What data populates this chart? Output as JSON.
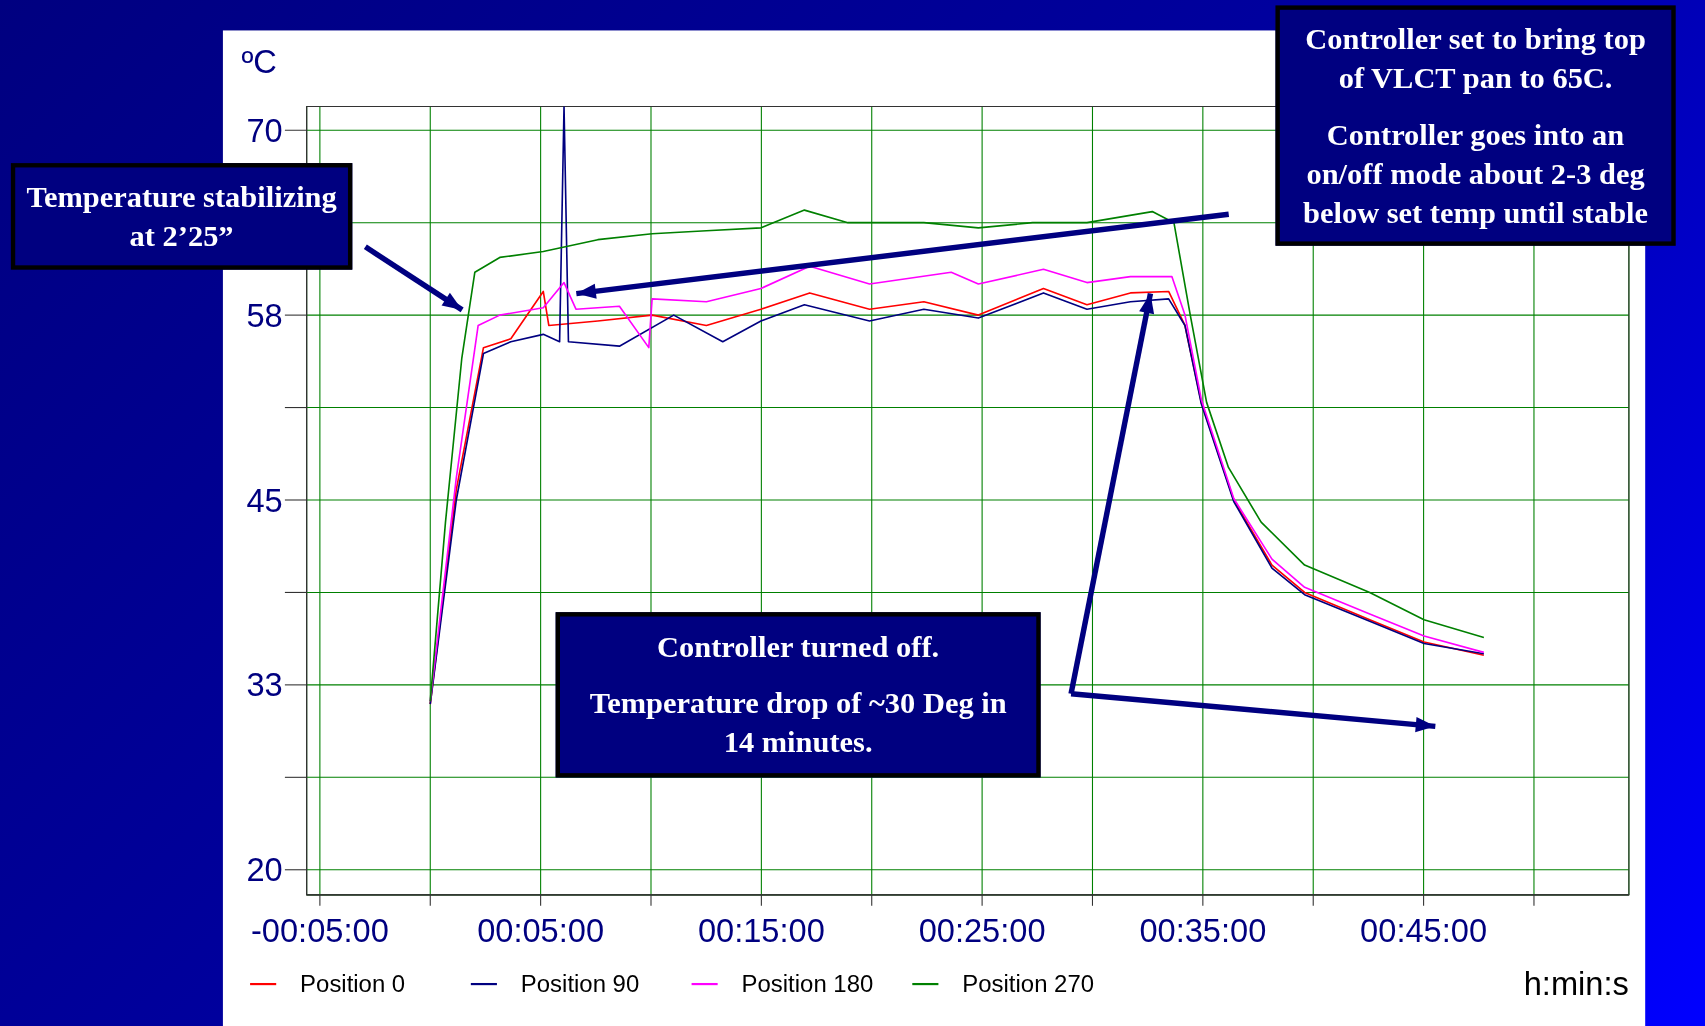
{
  "chart_data": {
    "type": "line",
    "ylabel": "ºC",
    "xlabel": "h:min:s",
    "xlim": [
      -5.6,
      54.3
    ],
    "xticks": [
      {
        "value": -5,
        "label": "-00:05:00"
      },
      {
        "value": 0,
        "label": null
      },
      {
        "value": 5,
        "label": "00:05:00"
      },
      {
        "value": 10,
        "label": null
      },
      {
        "value": 15,
        "label": "00:15:00"
      },
      {
        "value": 20,
        "label": null
      },
      {
        "value": 25,
        "label": "00:25:00"
      },
      {
        "value": 30,
        "label": null
      },
      {
        "value": 35,
        "label": "00:35:00"
      },
      {
        "value": 40,
        "label": null
      },
      {
        "value": 45,
        "label": "00:45:00"
      },
      {
        "value": 50,
        "label": null
      }
    ],
    "ylim": [
      18.3,
      71.6
    ],
    "yticks": [
      20,
      {
        "value": 26.25,
        "label": null
      },
      {
        "value": 32.5,
        "label": "33"
      },
      {
        "value": 38.75,
        "label": null
      },
      45,
      {
        "value": 51.25,
        "label": null
      },
      {
        "value": 57.5,
        "label": "58"
      },
      {
        "value": 63.75,
        "label": null
      },
      70
    ],
    "grid": true,
    "legend": "bottom",
    "marker": "none",
    "line_style": "solid",
    "annotations": [
      "Temperature stabilizing at 2’25”",
      "Controller set to bring top of VLCT pan to 65C.",
      "Controller goes into an on/off mode about 2-3 deg below set temp until stable",
      "Controller turned off.",
      "Temperature drop of ~30 Deg in 14 minutes."
    ],
    "series": [
      {
        "name": "Position 0",
        "color": "#ff0000",
        "x": [
          0,
          1.18,
          2.41,
          3.65,
          5.12,
          5.37,
          7.59,
          10.05,
          12.51,
          14.98,
          17.19,
          19.9,
          22.36,
          24.83,
          27.78,
          29.75,
          31.72,
          33.45,
          34.19,
          34.93,
          36.4,
          38.13,
          39.61,
          42.56,
          45.02,
          47.73
        ],
        "values": [
          31.2,
          45.7,
          55.3,
          55.9,
          59.1,
          56.8,
          57.1,
          57.5,
          56.8,
          57.9,
          59.0,
          57.9,
          58.4,
          57.5,
          59.3,
          58.2,
          59.0,
          59.1,
          56.8,
          51.6,
          45.0,
          40.6,
          38.75,
          36.9,
          35.4,
          34.5
        ]
      },
      {
        "name": "Position 90",
        "color": "#000080",
        "x": [
          0,
          1.18,
          2.41,
          3.65,
          5.12,
          5.86,
          6.06,
          6.26,
          8.57,
          11.03,
          13.25,
          14.98,
          16.95,
          19.9,
          22.36,
          24.83,
          27.78,
          29.75,
          31.72,
          33.45,
          34.19,
          34.93,
          36.4,
          38.13,
          39.61,
          42.56,
          45.02,
          47.73
        ],
        "values": [
          31.2,
          45.0,
          54.9,
          55.7,
          56.2,
          55.7,
          71.6,
          55.7,
          55.4,
          57.5,
          55.7,
          57.1,
          58.2,
          57.1,
          57.9,
          57.3,
          59.0,
          57.9,
          58.4,
          58.6,
          56.8,
          51.5,
          44.9,
          40.4,
          38.6,
          36.8,
          35.3,
          34.6
        ]
      },
      {
        "name": "Position 180",
        "color": "#ff00ff",
        "x": [
          0,
          1.18,
          2.17,
          3.15,
          5.12,
          6.06,
          6.6,
          8.57,
          9.9,
          10.05,
          12.51,
          14.98,
          17.19,
          19.9,
          23.6,
          24.83,
          27.78,
          29.75,
          31.72,
          33.6,
          34.19,
          34.93,
          36.4,
          38.13,
          39.61,
          42.56,
          45.02,
          47.73
        ],
        "values": [
          31.4,
          46.5,
          56.8,
          57.5,
          58.0,
          59.7,
          57.9,
          58.1,
          55.3,
          58.6,
          58.4,
          59.3,
          60.8,
          59.6,
          60.4,
          59.6,
          60.6,
          59.7,
          60.1,
          60.1,
          57.5,
          51.8,
          45.1,
          41.0,
          39.1,
          37.3,
          35.8,
          34.7
        ]
      },
      {
        "name": "Position 270",
        "color": "#008000",
        "x": [
          0,
          0.69,
          1.43,
          2.02,
          3.15,
          5.12,
          7.59,
          10.05,
          12.51,
          14.98,
          16.95,
          18.92,
          22.36,
          24.83,
          27.29,
          29.75,
          32.71,
          33.69,
          34.43,
          35.17,
          36.16,
          37.64,
          39.61,
          42.56,
          45.02,
          47.73
        ],
        "values": [
          31.4,
          43.5,
          54.6,
          60.4,
          61.4,
          61.8,
          62.6,
          63.0,
          63.2,
          63.4,
          64.6,
          63.75,
          63.75,
          63.4,
          63.75,
          63.75,
          64.5,
          63.75,
          57.5,
          51.6,
          47.2,
          43.5,
          40.6,
          38.75,
          36.9,
          35.7
        ]
      }
    ]
  }
}
